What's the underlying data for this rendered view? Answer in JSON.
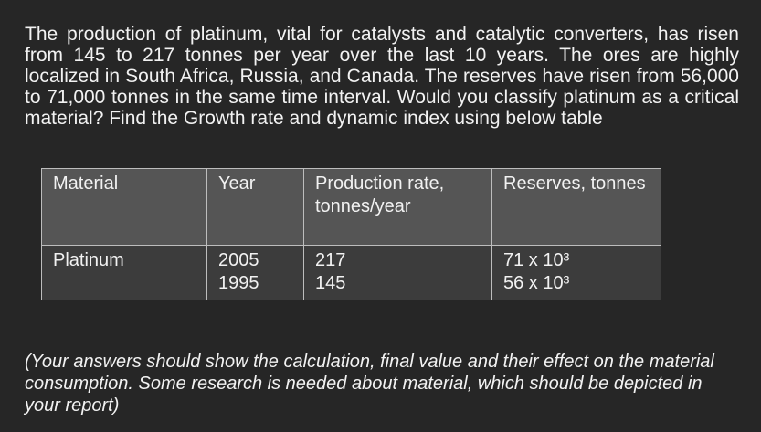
{
  "paragraph": "The production of platinum, vital for catalysts and catalytic converters, has risen from 145 to 217 tonnes per year over the last 10 years. The ores are highly localized in South Africa, Russia, and Canada. The reserves have risen from 56,000 to 71,000 tonnes in the same time interval. Would you classify platinum as a critical material? Find the Growth rate and dynamic index using below table",
  "table": {
    "header": [
      "Material",
      "Year",
      "Production rate, tonnes/year",
      "Reserves, tonnes"
    ],
    "rows": [
      {
        "material": "Platinum",
        "years": [
          "2005",
          "1995"
        ],
        "production": [
          "217",
          "145"
        ],
        "reserves": [
          "71 x 10³",
          "56 x 10³"
        ]
      }
    ]
  },
  "note": "(Your answers should show the calculation, final value and their effect on the material consumption. Some research is needed about material, which should be depicted in your report)"
}
